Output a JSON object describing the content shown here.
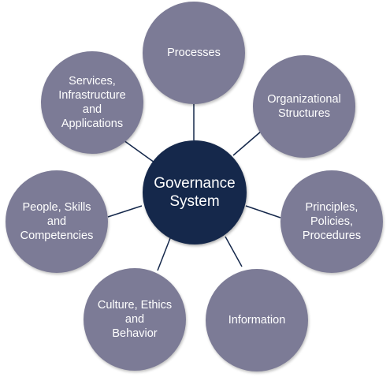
{
  "center": {
    "label": "Governance\nSystem",
    "color": "#15284b"
  },
  "components": [
    {
      "id": "processes",
      "label": "Processes"
    },
    {
      "id": "organizational-structures",
      "label": "Organizational\nStructures"
    },
    {
      "id": "principles-policies-procedures",
      "label": "Principles,\nPolicies,\nProcedures"
    },
    {
      "id": "information",
      "label": "Information"
    },
    {
      "id": "culture-ethics-behavior",
      "label": "Culture, Ethics\nand\nBehavior"
    },
    {
      "id": "people-skills-competencies",
      "label": "People, Skills\nand\nCompetencies"
    },
    {
      "id": "services-infrastructure-applications",
      "label": "Services,\nInfrastructure\nand\nApplications"
    }
  ],
  "colors": {
    "satellite": "#7c7b96",
    "hub": "#15284b",
    "connector": "#15284b",
    "text": "#ffffff"
  }
}
